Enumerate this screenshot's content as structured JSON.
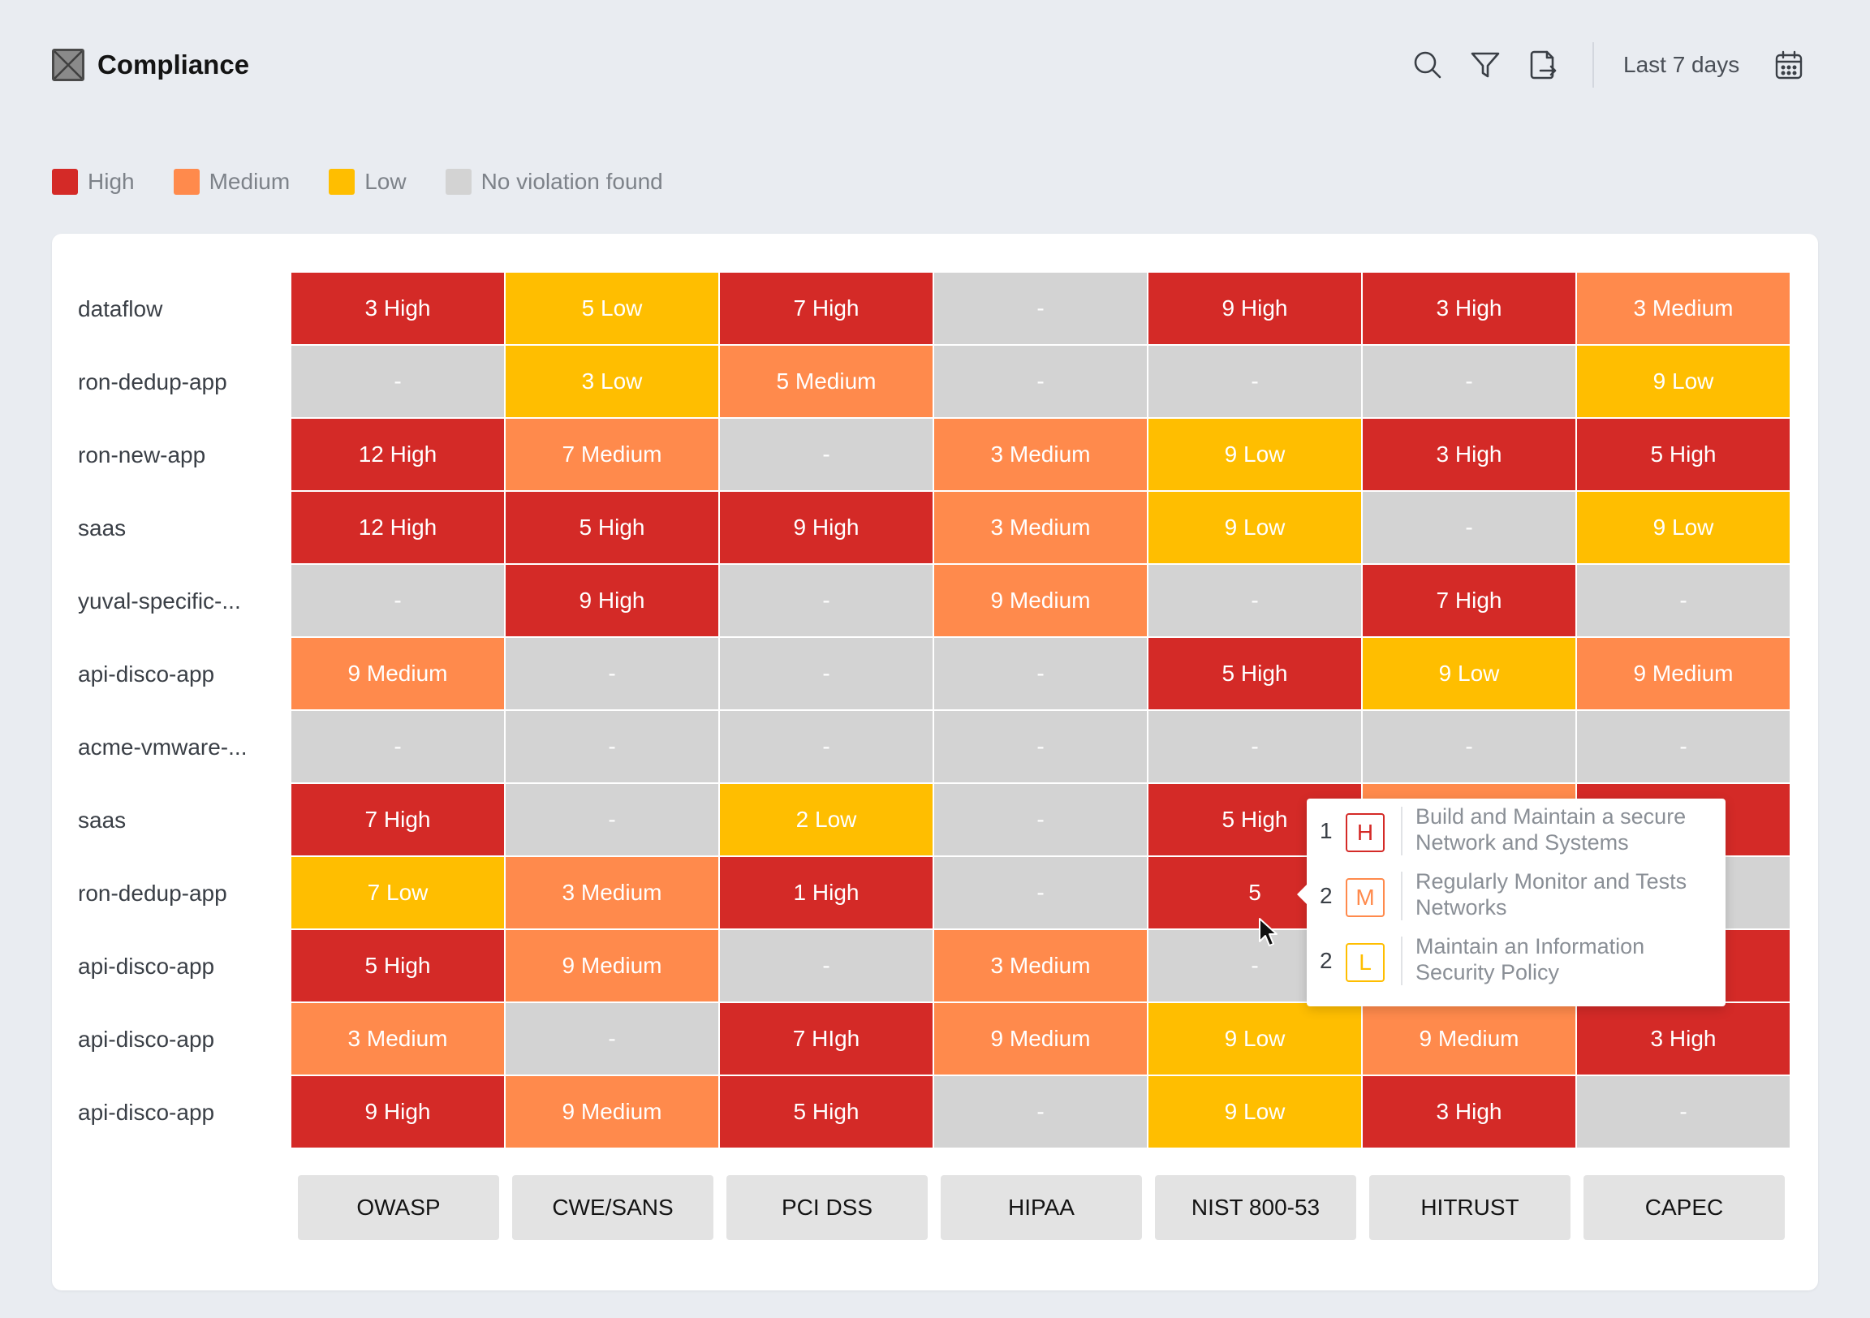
{
  "header": {
    "title": "Compliance",
    "date_range": "Last 7 days"
  },
  "icons": {
    "logo": "app-logo-icon",
    "search": "search-icon",
    "filter": "filter-icon",
    "export": "export-icon",
    "calendar": "calendar-icon"
  },
  "colors": {
    "high": "#d42a27",
    "medium": "#ff8a4c",
    "low": "#ffbe00",
    "none": "#d3d3d3",
    "background": "#e9ecf1"
  },
  "legend": {
    "high": "High",
    "medium": "Medium",
    "low": "Low",
    "none": "No violation found"
  },
  "columns": [
    "OWASP",
    "CWE/SANS",
    "PCI DSS",
    "HIPAA",
    "NIST 800-53",
    "HITRUST",
    "CAPEC"
  ],
  "rows": [
    {
      "label": "dataflow",
      "cells": [
        {
          "text": "3 High",
          "level": "high"
        },
        {
          "text": "5 Low",
          "level": "low"
        },
        {
          "text": "7 High",
          "level": "high"
        },
        {
          "text": "-",
          "level": "none"
        },
        {
          "text": "9 High",
          "level": "high"
        },
        {
          "text": "3 High",
          "level": "high"
        },
        {
          "text": "3 Medium",
          "level": "medium"
        }
      ]
    },
    {
      "label": "ron-dedup-app",
      "cells": [
        {
          "text": "-",
          "level": "none"
        },
        {
          "text": "3 Low",
          "level": "low"
        },
        {
          "text": "5 Medium",
          "level": "medium"
        },
        {
          "text": "-",
          "level": "none"
        },
        {
          "text": "-",
          "level": "none"
        },
        {
          "text": "-",
          "level": "none"
        },
        {
          "text": "9 Low",
          "level": "low"
        }
      ]
    },
    {
      "label": "ron-new-app",
      "cells": [
        {
          "text": "12 High",
          "level": "high"
        },
        {
          "text": "7 Medium",
          "level": "medium"
        },
        {
          "text": "-",
          "level": "none"
        },
        {
          "text": "3 Medium",
          "level": "medium"
        },
        {
          "text": "9 Low",
          "level": "low"
        },
        {
          "text": "3 High",
          "level": "high"
        },
        {
          "text": "5 High",
          "level": "high"
        }
      ]
    },
    {
      "label": "saas",
      "cells": [
        {
          "text": "12 High",
          "level": "high"
        },
        {
          "text": "5 High",
          "level": "high"
        },
        {
          "text": "9 High",
          "level": "high"
        },
        {
          "text": "3 Medium",
          "level": "medium"
        },
        {
          "text": "9 Low",
          "level": "low"
        },
        {
          "text": "-",
          "level": "none"
        },
        {
          "text": "9 Low",
          "level": "low"
        }
      ]
    },
    {
      "label": "yuval-specific-...",
      "cells": [
        {
          "text": "-",
          "level": "none"
        },
        {
          "text": "9 High",
          "level": "high"
        },
        {
          "text": "-",
          "level": "none"
        },
        {
          "text": "9 Medium",
          "level": "medium"
        },
        {
          "text": "-",
          "level": "none"
        },
        {
          "text": "7 High",
          "level": "high"
        },
        {
          "text": "-",
          "level": "none"
        }
      ]
    },
    {
      "label": "api-disco-app",
      "cells": [
        {
          "text": "9 Medium",
          "level": "medium"
        },
        {
          "text": "-",
          "level": "none"
        },
        {
          "text": "-",
          "level": "none"
        },
        {
          "text": "-",
          "level": "none"
        },
        {
          "text": "5 High",
          "level": "high"
        },
        {
          "text": "9 Low",
          "level": "low"
        },
        {
          "text": "9 Medium",
          "level": "medium"
        }
      ]
    },
    {
      "label": "acme-vmware-...",
      "cells": [
        {
          "text": "-",
          "level": "none"
        },
        {
          "text": "-",
          "level": "none"
        },
        {
          "text": "-",
          "level": "none"
        },
        {
          "text": "-",
          "level": "none"
        },
        {
          "text": "-",
          "level": "none"
        },
        {
          "text": "-",
          "level": "none"
        },
        {
          "text": "-",
          "level": "none"
        }
      ]
    },
    {
      "label": "saas",
      "cells": [
        {
          "text": "7 High",
          "level": "high"
        },
        {
          "text": "-",
          "level": "none"
        },
        {
          "text": "2 Low",
          "level": "low"
        },
        {
          "text": "-",
          "level": "none"
        },
        {
          "text": "5 High",
          "level": "high"
        },
        {
          "text": "",
          "level": "medium"
        },
        {
          "text": "",
          "level": "high"
        }
      ]
    },
    {
      "label": "ron-dedup-app",
      "cells": [
        {
          "text": "7 Low",
          "level": "low"
        },
        {
          "text": "3 Medium",
          "level": "medium"
        },
        {
          "text": "1 High",
          "level": "high"
        },
        {
          "text": "-",
          "level": "none"
        },
        {
          "text": "5",
          "level": "high"
        },
        {
          "text": "",
          "level": "none"
        },
        {
          "text": "",
          "level": "none"
        }
      ]
    },
    {
      "label": "api-disco-app",
      "cells": [
        {
          "text": "5 High",
          "level": "high"
        },
        {
          "text": "9 Medium",
          "level": "medium"
        },
        {
          "text": "-",
          "level": "none"
        },
        {
          "text": "3 Medium",
          "level": "medium"
        },
        {
          "text": "-",
          "level": "none"
        },
        {
          "text": "",
          "level": "none"
        },
        {
          "text": "",
          "level": "high"
        }
      ]
    },
    {
      "label": "api-disco-app",
      "cells": [
        {
          "text": "3 Medium",
          "level": "medium"
        },
        {
          "text": "-",
          "level": "none"
        },
        {
          "text": "7 HIgh",
          "level": "high"
        },
        {
          "text": "9 Medium",
          "level": "medium"
        },
        {
          "text": "9 Low",
          "level": "low"
        },
        {
          "text": "9 Medium",
          "level": "medium"
        },
        {
          "text": "3 High",
          "level": "high"
        }
      ]
    },
    {
      "label": "api-disco-app",
      "cells": [
        {
          "text": "9 High",
          "level": "high"
        },
        {
          "text": "9 Medium",
          "level": "medium"
        },
        {
          "text": "5 High",
          "level": "high"
        },
        {
          "text": "-",
          "level": "none"
        },
        {
          "text": "9 Low",
          "level": "low"
        },
        {
          "text": "3 High",
          "level": "high"
        },
        {
          "text": "-",
          "level": "none"
        }
      ]
    }
  ],
  "tooltip": {
    "items": [
      {
        "count": "1",
        "badge": "H",
        "level": "high",
        "text": "Build and Maintain a secure Network and Systems"
      },
      {
        "count": "2",
        "badge": "M",
        "level": "medium",
        "text": "Regularly Monitor and Tests Networks"
      },
      {
        "count": "2",
        "badge": "L",
        "level": "low",
        "text": "Maintain an Information Security Policy"
      }
    ]
  }
}
